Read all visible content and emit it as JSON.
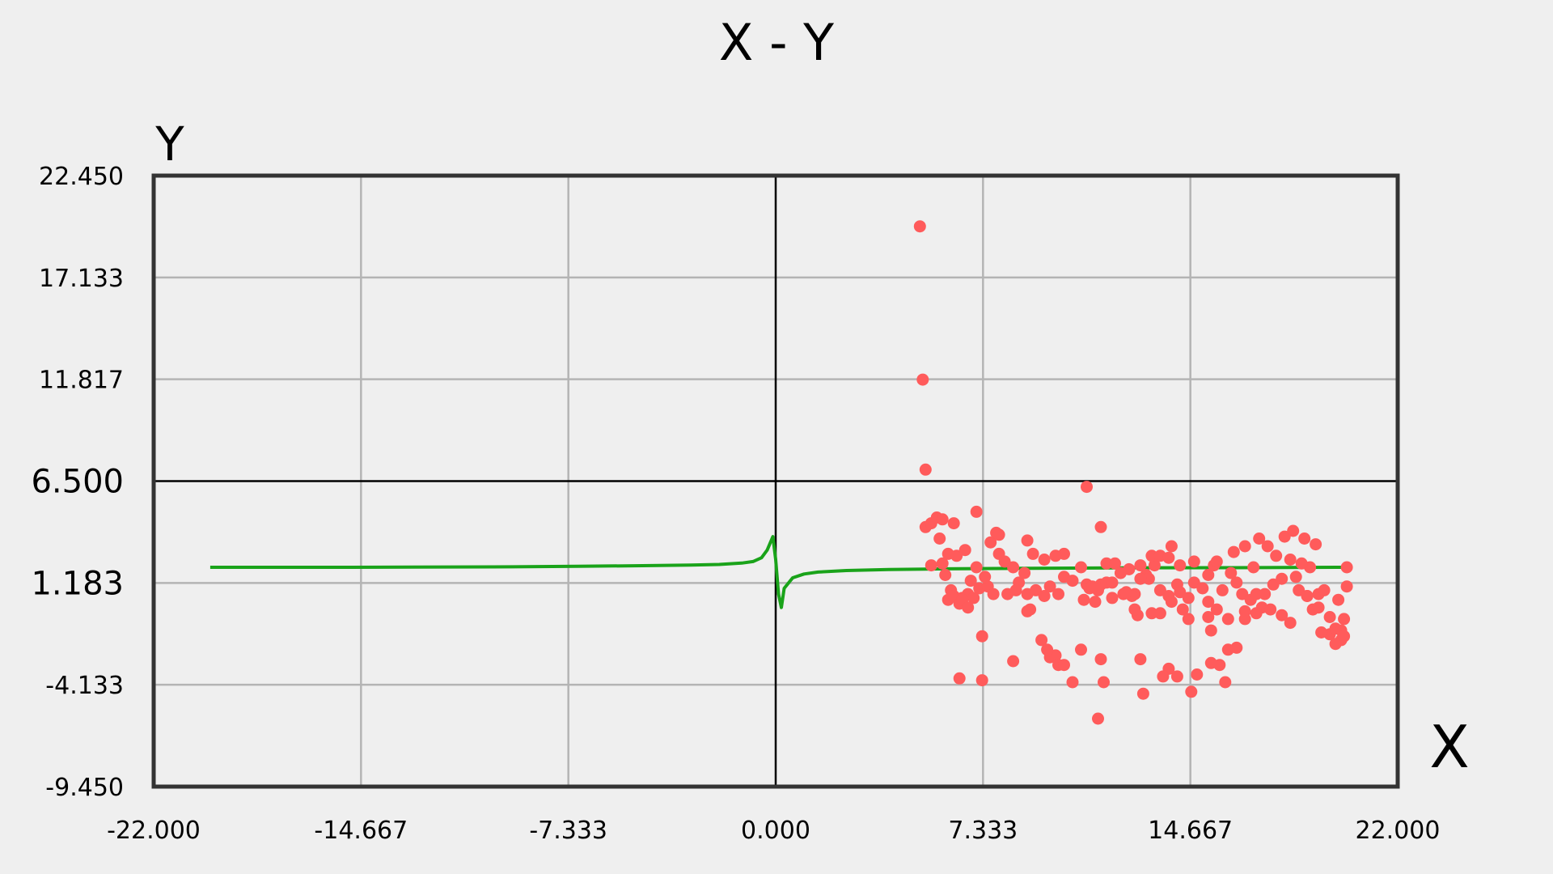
{
  "chart_data": {
    "type": "scatter",
    "title": "X - Y",
    "xlabel": "X",
    "ylabel": "Y",
    "xlim": [
      -22.0,
      22.0
    ],
    "ylim": [
      -9.45,
      22.45
    ],
    "x_ticks": [
      "-22.000",
      "-14.667",
      "-7.333",
      "0.000",
      "7.333",
      "14.667",
      "22.000"
    ],
    "y_ticks": [
      "22.450",
      "17.133",
      "11.817",
      "6.500",
      "1.183",
      "-4.133",
      "-9.450"
    ],
    "grid": true,
    "colors": {
      "background": "#efefef",
      "frame": "#333333",
      "grid": "#b4b4b4",
      "axis_line": "#000000",
      "line_series": "#1aa31a",
      "scatter_series": "#ff5b5b"
    },
    "series": [
      {
        "type": "line",
        "color": "#1aa31a",
        "points": [
          [
            -20.0,
            2.0
          ],
          [
            -15.0,
            2.0
          ],
          [
            -10.0,
            2.02
          ],
          [
            -7.0,
            2.05
          ],
          [
            -5.0,
            2.08
          ],
          [
            -3.0,
            2.12
          ],
          [
            -2.0,
            2.15
          ],
          [
            -1.2,
            2.22
          ],
          [
            -0.8,
            2.3
          ],
          [
            -0.5,
            2.5
          ],
          [
            -0.3,
            2.9
          ],
          [
            -0.1,
            3.6
          ],
          [
            0.0,
            2.4
          ],
          [
            0.1,
            0.6
          ],
          [
            0.2,
            -0.1
          ],
          [
            0.3,
            0.9
          ],
          [
            0.6,
            1.45
          ],
          [
            1.0,
            1.65
          ],
          [
            1.5,
            1.75
          ],
          [
            2.5,
            1.83
          ],
          [
            4.0,
            1.88
          ],
          [
            6.0,
            1.92
          ],
          [
            9.0,
            1.95
          ],
          [
            12.0,
            1.97
          ],
          [
            16.0,
            1.98
          ],
          [
            20.0,
            2.0
          ]
        ]
      },
      {
        "type": "scatter",
        "color": "#ff5b5b",
        "points": [
          [
            5.1,
            19.8
          ],
          [
            5.2,
            11.8
          ],
          [
            5.3,
            7.1
          ],
          [
            5.3,
            4.1
          ],
          [
            5.5,
            4.3
          ],
          [
            5.7,
            4.6
          ],
          [
            5.9,
            4.5
          ],
          [
            6.3,
            4.3
          ],
          [
            5.8,
            3.5
          ],
          [
            6.4,
            2.6
          ],
          [
            6.1,
            2.7
          ],
          [
            5.9,
            2.2
          ],
          [
            6.7,
            2.9
          ],
          [
            5.5,
            2.1
          ],
          [
            6.0,
            1.6
          ],
          [
            6.2,
            0.8
          ],
          [
            6.1,
            0.3
          ],
          [
            6.3,
            0.5
          ],
          [
            6.5,
            0.1
          ],
          [
            6.6,
            0.4
          ],
          [
            6.8,
            0.6
          ],
          [
            7.0,
            0.4
          ],
          [
            7.2,
            0.9
          ],
          [
            7.5,
            1.0
          ],
          [
            7.7,
            0.6
          ],
          [
            6.9,
            1.3
          ],
          [
            6.6,
            0.3
          ],
          [
            6.8,
            -0.1
          ],
          [
            7.4,
            1.5
          ],
          [
            7.1,
            2.0
          ],
          [
            7.1,
            4.9
          ],
          [
            7.3,
            -1.6
          ],
          [
            7.3,
            -3.9
          ],
          [
            6.5,
            -3.8
          ],
          [
            7.6,
            3.3
          ],
          [
            7.8,
            3.8
          ],
          [
            7.9,
            3.7
          ],
          [
            8.1,
            2.3
          ],
          [
            7.9,
            2.7
          ],
          [
            8.4,
            2.0
          ],
          [
            8.6,
            1.2
          ],
          [
            8.2,
            0.6
          ],
          [
            8.5,
            0.8
          ],
          [
            8.8,
            1.7
          ],
          [
            8.9,
            0.6
          ],
          [
            9.2,
            0.8
          ],
          [
            8.9,
            3.4
          ],
          [
            9.1,
            2.7
          ],
          [
            8.4,
            -2.9
          ],
          [
            8.9,
            -0.3
          ],
          [
            9.0,
            -0.2
          ],
          [
            9.4,
            -1.8
          ],
          [
            9.7,
            -2.7
          ],
          [
            9.9,
            -2.6
          ],
          [
            9.6,
            -2.3
          ],
          [
            10.0,
            -3.1
          ],
          [
            10.2,
            -3.1
          ],
          [
            10.5,
            -4.0
          ],
          [
            9.5,
            0.5
          ],
          [
            9.7,
            1.0
          ],
          [
            10.0,
            0.6
          ],
          [
            10.2,
            1.5
          ],
          [
            10.5,
            1.3
          ],
          [
            10.9,
            0.3
          ],
          [
            10.8,
            2.0
          ],
          [
            11.0,
            1.1
          ],
          [
            11.1,
            0.9
          ],
          [
            11.4,
            0.8
          ],
          [
            11.5,
            1.1
          ],
          [
            11.7,
            1.2
          ],
          [
            10.2,
            2.7
          ],
          [
            9.9,
            2.6
          ],
          [
            9.5,
            2.4
          ],
          [
            10.8,
            -2.3
          ],
          [
            11.0,
            6.2
          ],
          [
            11.2,
            1.0
          ],
          [
            11.3,
            0.2
          ],
          [
            11.5,
            -2.8
          ],
          [
            11.6,
            -4.0
          ],
          [
            11.4,
            -5.9
          ],
          [
            11.5,
            4.1
          ],
          [
            11.7,
            2.2
          ],
          [
            11.9,
            1.2
          ],
          [
            11.9,
            0.4
          ],
          [
            12.3,
            0.6
          ],
          [
            12.7,
            0.6
          ],
          [
            12.5,
            1.9
          ],
          [
            12.9,
            2.1
          ],
          [
            13.1,
            1.6
          ],
          [
            13.2,
            1.4
          ],
          [
            13.4,
            2.1
          ],
          [
            13.6,
            0.8
          ],
          [
            13.9,
            0.5
          ],
          [
            14.2,
            1.1
          ],
          [
            14.3,
            0.7
          ],
          [
            14.6,
            0.4
          ],
          [
            14.8,
            1.2
          ],
          [
            15.1,
            0.9
          ],
          [
            15.3,
            0.2
          ],
          [
            15.3,
            -0.6
          ],
          [
            15.6,
            -0.2
          ],
          [
            15.8,
            0.8
          ],
          [
            14.6,
            -0.7
          ],
          [
            14.4,
            -0.2
          ],
          [
            14.0,
            0.2
          ],
          [
            13.6,
            -0.4
          ],
          [
            13.3,
            -0.4
          ],
          [
            12.8,
            -0.5
          ],
          [
            12.6,
            0.5
          ],
          [
            12.9,
            1.4
          ],
          [
            12.0,
            2.2
          ],
          [
            12.2,
            1.7
          ],
          [
            12.4,
            0.7
          ],
          [
            12.7,
            -0.2
          ],
          [
            12.9,
            -2.8
          ],
          [
            13.0,
            -4.6
          ],
          [
            13.3,
            2.6
          ],
          [
            13.6,
            2.6
          ],
          [
            13.9,
            2.5
          ],
          [
            14.0,
            3.1
          ],
          [
            14.3,
            2.1
          ],
          [
            14.8,
            2.3
          ],
          [
            14.9,
            -3.6
          ],
          [
            14.7,
            -4.5
          ],
          [
            14.2,
            -3.7
          ],
          [
            13.9,
            -3.3
          ],
          [
            13.7,
            -3.7
          ],
          [
            15.3,
            1.6
          ],
          [
            15.5,
            2.1
          ],
          [
            15.6,
            2.3
          ],
          [
            15.4,
            -1.3
          ],
          [
            15.4,
            -3.0
          ],
          [
            15.7,
            -3.1
          ],
          [
            15.9,
            -4.0
          ],
          [
            16.0,
            -0.7
          ],
          [
            16.0,
            -2.3
          ],
          [
            16.1,
            1.7
          ],
          [
            16.3,
            1.2
          ],
          [
            16.5,
            0.6
          ],
          [
            16.6,
            -0.3
          ],
          [
            16.8,
            0.3
          ],
          [
            17.0,
            0.6
          ],
          [
            17.2,
            -0.1
          ],
          [
            17.3,
            0.6
          ],
          [
            17.6,
            1.1
          ],
          [
            17.7,
            2.6
          ],
          [
            17.9,
            1.4
          ],
          [
            18.2,
            2.4
          ],
          [
            18.4,
            1.5
          ],
          [
            18.5,
            0.8
          ],
          [
            18.8,
            0.5
          ],
          [
            19.0,
            -0.2
          ],
          [
            19.2,
            0.6
          ],
          [
            19.4,
            0.8
          ],
          [
            19.6,
            -1.5
          ],
          [
            19.8,
            -2.0
          ],
          [
            20.0,
            -1.8
          ],
          [
            20.1,
            -0.7
          ],
          [
            20.2,
            1.0
          ],
          [
            19.9,
            0.3
          ],
          [
            16.2,
            2.8
          ],
          [
            16.6,
            3.1
          ],
          [
            17.1,
            3.5
          ],
          [
            17.4,
            3.1
          ],
          [
            18.0,
            3.6
          ],
          [
            18.3,
            3.9
          ],
          [
            18.7,
            3.5
          ],
          [
            19.1,
            3.2
          ],
          [
            17.5,
            -0.2
          ],
          [
            17.0,
            -0.4
          ],
          [
            16.6,
            -0.7
          ],
          [
            16.3,
            -2.2
          ],
          [
            17.9,
            -0.5
          ],
          [
            18.2,
            -0.9
          ],
          [
            18.8,
            0.5
          ],
          [
            19.2,
            -0.1
          ],
          [
            19.3,
            -1.4
          ],
          [
            19.6,
            -0.6
          ],
          [
            19.8,
            -1.2
          ],
          [
            20.0,
            -1.3
          ],
          [
            20.1,
            -1.6
          ],
          [
            20.2,
            2.0
          ],
          [
            18.9,
            2.0
          ],
          [
            18.6,
            2.2
          ],
          [
            16.9,
            2.0
          ]
        ]
      }
    ]
  }
}
